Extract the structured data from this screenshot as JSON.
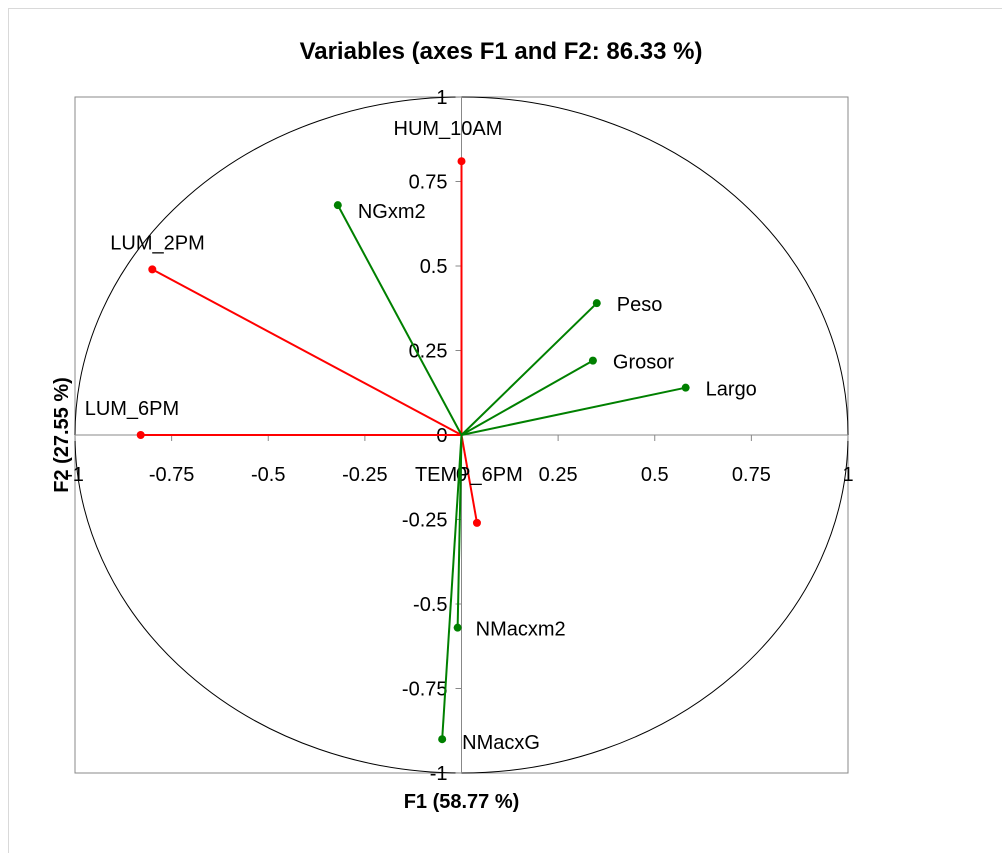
{
  "chart_data": {
    "type": "scatter",
    "title": "Variables (axes F1 and F2: 86.33 %)",
    "xlabel": "F1 (58.77 %)",
    "ylabel": "F2 (27.55 %)",
    "xlim": [
      -1,
      1
    ],
    "ylim": [
      -1,
      1
    ],
    "x_ticks": [
      "-1",
      "-0.75",
      "-0.5",
      "-0.25",
      "0",
      "0.25",
      "0.5",
      "0.75",
      "1"
    ],
    "y_ticks": [
      "-1",
      "-0.75",
      "-0.5",
      "-0.25",
      "0",
      "0.25",
      "0.5",
      "0.75",
      "1"
    ],
    "grid": false,
    "unit_circle": true,
    "colors": {
      "red": "#ff0000",
      "green": "#008000",
      "axis": "#888888",
      "circle": "#000000"
    },
    "series": [
      {
        "color": "red",
        "points": [
          {
            "label": "HUM_10AM",
            "x": 0.0,
            "y": 0.81
          },
          {
            "label": "LUM_2PM",
            "x": -0.8,
            "y": 0.49
          },
          {
            "label": "LUM_6PM",
            "x": -0.83,
            "y": 0.0
          },
          {
            "label": "TEMP_6PM",
            "x": 0.04,
            "y": -0.26
          }
        ]
      },
      {
        "color": "green",
        "points": [
          {
            "label": "NGxm2",
            "x": -0.32,
            "y": 0.68
          },
          {
            "label": "Peso",
            "x": 0.35,
            "y": 0.39
          },
          {
            "label": "Grosor",
            "x": 0.34,
            "y": 0.22
          },
          {
            "label": "Largo",
            "x": 0.58,
            "y": 0.14
          },
          {
            "label": "NMacxm2",
            "x": -0.01,
            "y": -0.57
          },
          {
            "label": "NMacxG",
            "x": -0.05,
            "y": -0.9
          }
        ]
      }
    ]
  }
}
